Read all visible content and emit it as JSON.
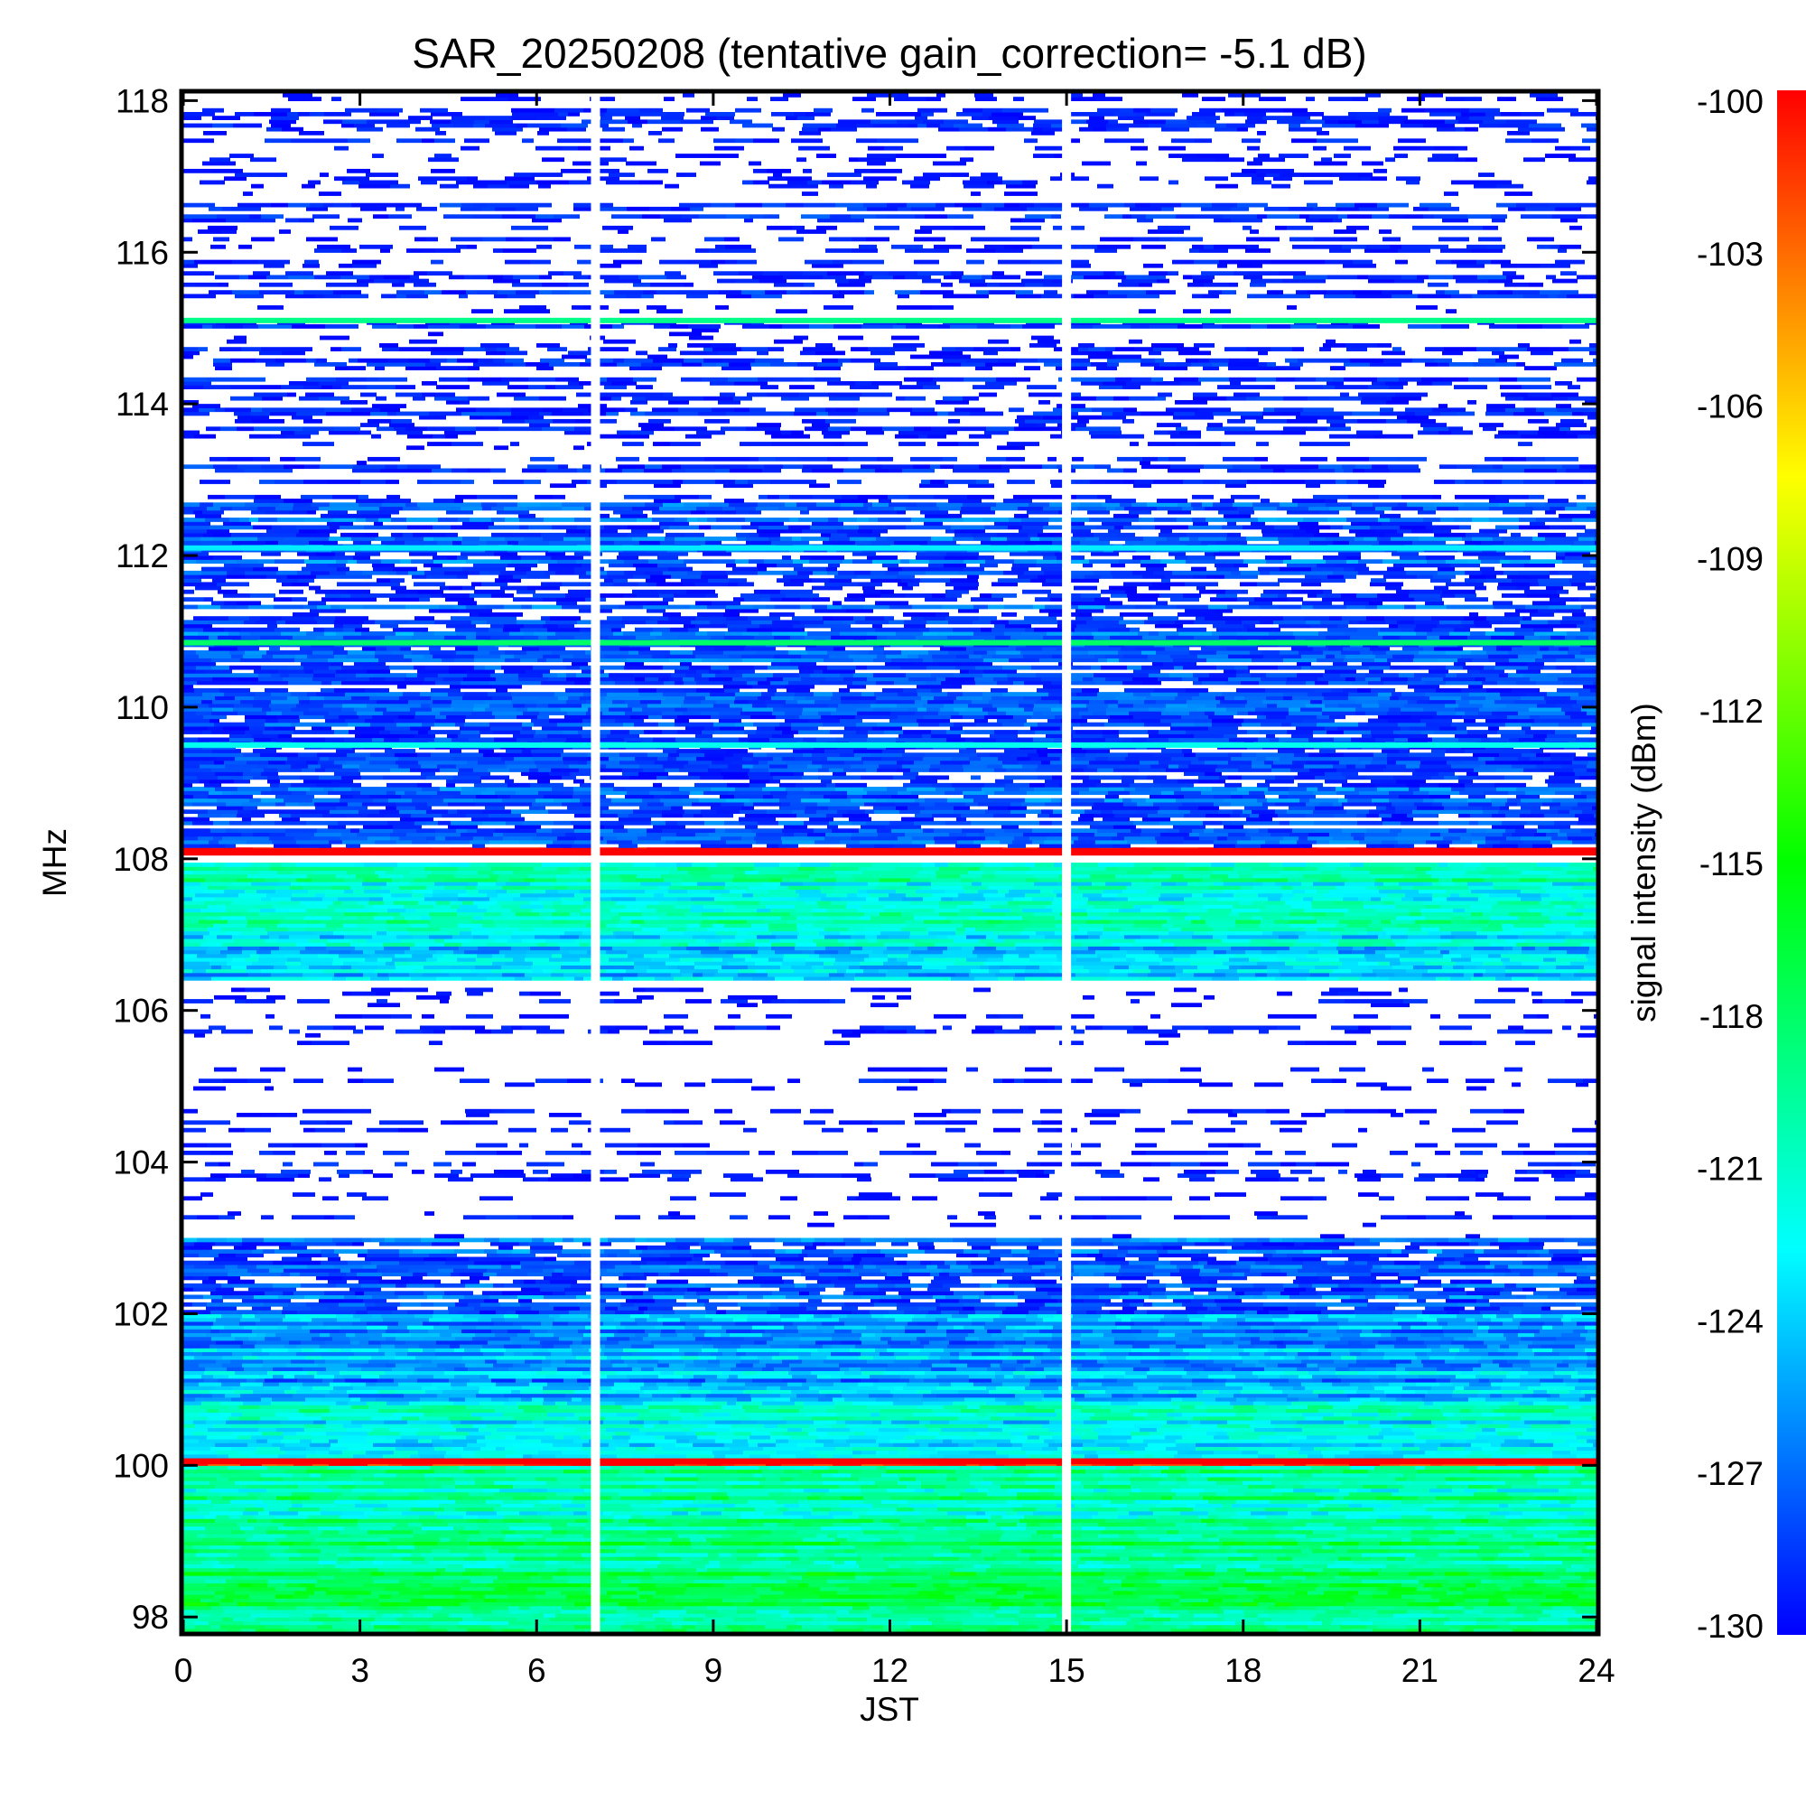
{
  "chart_data": {
    "type": "heatmap",
    "title": "SAR_20250208 (tentative gain_correction= -5.1 dB)",
    "xlabel": "JST",
    "ylabel": "MHz",
    "xlim": [
      0,
      24
    ],
    "ylim": [
      97.8,
      118.1
    ],
    "x_ticks": [
      0,
      3,
      6,
      9,
      12,
      15,
      18,
      21,
      24
    ],
    "y_ticks": [
      98,
      100,
      102,
      104,
      106,
      108,
      110,
      112,
      114,
      116,
      118
    ],
    "colorbar": {
      "label": "signal intensity (dBm)",
      "min": -130,
      "max": -100,
      "ticks": [
        "-100",
        "-103",
        "-106",
        "-109",
        "-112",
        "-115",
        "-118",
        "-121",
        "-124",
        "-127",
        "-130"
      ],
      "colormap": [
        "#0000ff",
        "#00ffff",
        "#00ff00",
        "#ffff00",
        "#ff0000"
      ]
    },
    "data_gaps_jst": [
      7.0,
      15.0
    ],
    "bands": [
      {
        "from_mhz": 97.8,
        "to_mhz": 99.3,
        "level_dbm": -118.5,
        "note": "yellow-green"
      },
      {
        "from_mhz": 99.3,
        "to_mhz": 100.0,
        "level_dbm": -120
      },
      {
        "from_mhz": 100.0,
        "to_mhz": 100.12,
        "level_dbm": -100
      },
      {
        "from_mhz": 100.12,
        "to_mhz": 100.9,
        "level_dbm": -122
      },
      {
        "from_mhz": 100.9,
        "to_mhz": 102.0,
        "level_dbm": -125
      },
      {
        "from_mhz": 102.0,
        "to_mhz": 103.0,
        "level_dbm": -128
      },
      {
        "from_mhz": 103.0,
        "to_mhz": 106.4,
        "level_dbm": -132
      },
      {
        "from_mhz": 106.4,
        "to_mhz": 107.05,
        "level_dbm": -123
      },
      {
        "from_mhz": 107.05,
        "to_mhz": 107.95,
        "level_dbm": -121
      },
      {
        "from_mhz": 108.05,
        "to_mhz": 108.15,
        "level_dbm": -100
      },
      {
        "from_mhz": 108.15,
        "to_mhz": 112.8,
        "level_dbm": -128.5
      },
      {
        "from_mhz": 112.8,
        "to_mhz": 118.1,
        "level_dbm": -131
      }
    ],
    "bright_lines": [
      {
        "mhz": 100.05,
        "level_dbm": -100
      },
      {
        "mhz": 108.1,
        "level_dbm": -100
      },
      {
        "mhz": 110.85,
        "level_dbm": -118
      },
      {
        "mhz": 109.5,
        "level_dbm": -122
      },
      {
        "mhz": 115.1,
        "level_dbm": -119
      },
      {
        "mhz": 112.1,
        "level_dbm": -123
      }
    ]
  }
}
